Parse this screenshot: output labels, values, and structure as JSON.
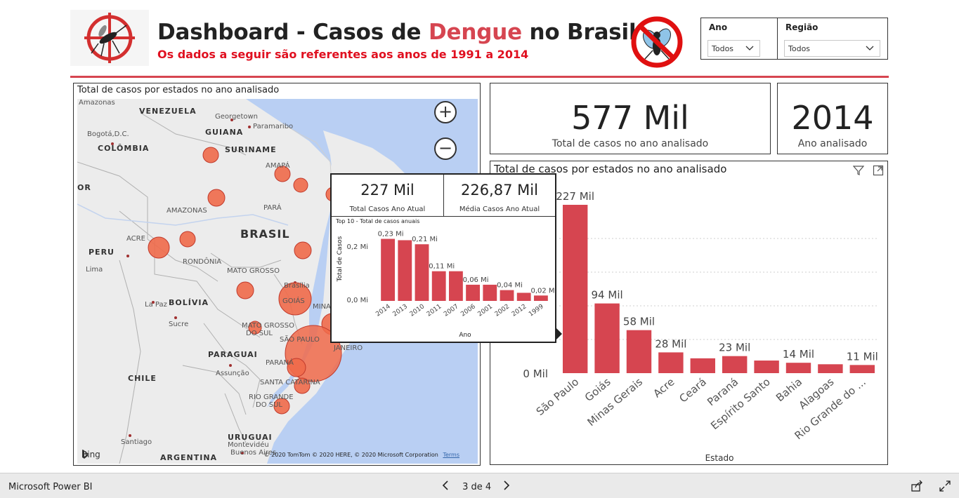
{
  "header": {
    "title_part1": "Dashboard - Casos de ",
    "title_highlight": "Dengue",
    "title_part2": " no Brasil",
    "subtitle": "Os dados a seguir são referentes aos anos de 1991 a 2014"
  },
  "slicers": {
    "ano": {
      "label": "Ano",
      "value": "Todos"
    },
    "regiao": {
      "label": "Região",
      "value": "Todos"
    }
  },
  "map_panel": {
    "title": "Total de casos por estados no ano analisado",
    "labels": {
      "venezuela": "VENEZUELA",
      "georgetown": "Georgetown",
      "paramaribo": "Paramaribo",
      "bogota": "Bogotá,D.C.",
      "guiana": "GUIANA",
      "colombia": "COLÔMBIA",
      "suriname": "SURINAME",
      "amapa": "AMAPÁ",
      "or": "OR",
      "amazonas": "AMAZONAS",
      "para": "PARÁ",
      "brasil": "BRASIL",
      "acre": "ACRE",
      "peru": "PERU",
      "lima": "Lima",
      "rondonia": "RONDÔNIA",
      "mato_grosso": "MATO GROSSO",
      "brasilia": "Brasília",
      "goias": "GOIÁS",
      "minas": "MINAS",
      "la_paz": "La Paz",
      "bolivia": "BOLÍVIA",
      "sucre": "Sucre",
      "mato_grosso_sul_1": "MATO GROSSO",
      "mato_grosso_sul_2": "DO SUL",
      "sao_paulo": "SÃO PAULO",
      "janeiro": "JANEIRO",
      "paraguai": "PARAGUAI",
      "assuncao": "Assunção",
      "parana": "PARANÁ",
      "santa_catarina": "SANTA CATARINA",
      "chile": "CHILE",
      "rio_grande_sul_1": "RIO GRANDE",
      "rio_grande_sul_2": "DO SUL",
      "uruguai": "URUGUAI",
      "santiago": "Santiago",
      "montevideu": "Montevidéu",
      "buenos_aires": "Buenos Aires",
      "argentina": "ARGENTINA",
      "amazonas_top": "Amazonas"
    },
    "bing": "Bing",
    "attribution": "© 2020 TomTom © 2020 HERE, © 2020 Microsoft Corporation",
    "terms": "Terms"
  },
  "kpis": {
    "total_casos": {
      "value": "577 Mil",
      "label": "Total de casos no ano analisado"
    },
    "ano": {
      "value": "2014",
      "label": "Ano analisado"
    }
  },
  "tooltip": {
    "card1": {
      "value": "227 Mil",
      "label": "Total Casos Ano Atual"
    },
    "card2": {
      "value": "226,87 Mil",
      "label": "Média Casos Ano Atual"
    },
    "chart_title": "Top 10 - Total de casos anuais"
  },
  "bar_panel": {
    "title": "Total de casos por estados no ano analisado"
  },
  "chart_data": [
    {
      "type": "bar",
      "title": "Total de casos por estados no ano analisado",
      "xlabel": "Estado",
      "ylabel": "",
      "categories": [
        "São Paulo",
        "Goiás",
        "Minas Gerais",
        "Acre",
        "Ceará",
        "Paraná",
        "Espírito Santo",
        "Bahia",
        "Alagoas",
        "Rio Grande do ..."
      ],
      "values": [
        227,
        94,
        58,
        28,
        20,
        23,
        17,
        14,
        12,
        11
      ],
      "data_labels": [
        "227 Mil",
        "94 Mil",
        "58 Mil",
        "28 Mil",
        "",
        "23 Mil",
        "",
        "14 Mil",
        "",
        "11 Mil"
      ],
      "y_tick_label": "0 Mil",
      "grid": true,
      "color": "#d64550"
    },
    {
      "type": "bar",
      "title": "Top 10 - Total de casos anuais",
      "xlabel": "Ano",
      "ylabel": "Total de Casos",
      "categories": [
        "2014",
        "2013",
        "2010",
        "2011",
        "2007",
        "2006",
        "2001",
        "2002",
        "2012",
        "1999"
      ],
      "values": [
        0.23,
        0.225,
        0.21,
        0.11,
        0.11,
        0.06,
        0.06,
        0.04,
        0.03,
        0.02
      ],
      "data_labels": [
        "0,23 Mi",
        "",
        "0,21 Mi",
        "0,11 Mi",
        "",
        "0,06 Mi",
        "",
        "0,04 Mi",
        "",
        "0,02 Mi"
      ],
      "y_ticks": [
        "0,0 Mi",
        "0,2 Mi"
      ],
      "ylim": [
        0,
        0.26
      ],
      "color": "#d64550"
    }
  ],
  "footer": {
    "brand": "Microsoft Power BI",
    "page": "3 de 4"
  },
  "colors": {
    "accent": "#d64550",
    "bubble": "#f06a4a",
    "water": "#b9cff3",
    "land": "#ececec"
  }
}
